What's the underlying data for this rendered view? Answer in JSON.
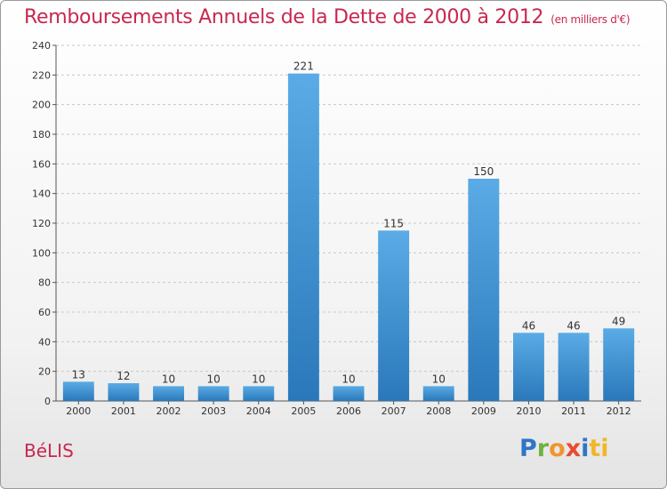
{
  "header": {
    "title": "Remboursements Annuels de la Dette de 2000 à 2012",
    "subtitle": "(en milliers d'€)"
  },
  "footer": {
    "place": "BéLIS",
    "logo_letters": [
      "P",
      "r",
      "o",
      "x",
      "i",
      "ti"
    ]
  },
  "colors": {
    "title": "#c8284f",
    "bar_top": "#5aabe6",
    "bar_bottom": "#2a78ba",
    "grid": "#c8c8c8"
  },
  "chart_data": {
    "type": "bar",
    "categories": [
      "2000",
      "2001",
      "2002",
      "2003",
      "2004",
      "2005",
      "2006",
      "2007",
      "2008",
      "2009",
      "2010",
      "2011",
      "2012"
    ],
    "values": [
      13,
      12,
      10,
      10,
      10,
      221,
      10,
      115,
      10,
      150,
      46,
      46,
      49
    ],
    "title": "Remboursements Annuels de la Dette de 2000 à 2012",
    "subtitle": "(en milliers d'€)",
    "xlabel": "",
    "ylabel": "",
    "ylim": [
      0,
      240
    ],
    "yticks": [
      0,
      20,
      40,
      60,
      80,
      100,
      120,
      140,
      160,
      180,
      200,
      220,
      240
    ],
    "grid": true,
    "data_labels": true
  }
}
